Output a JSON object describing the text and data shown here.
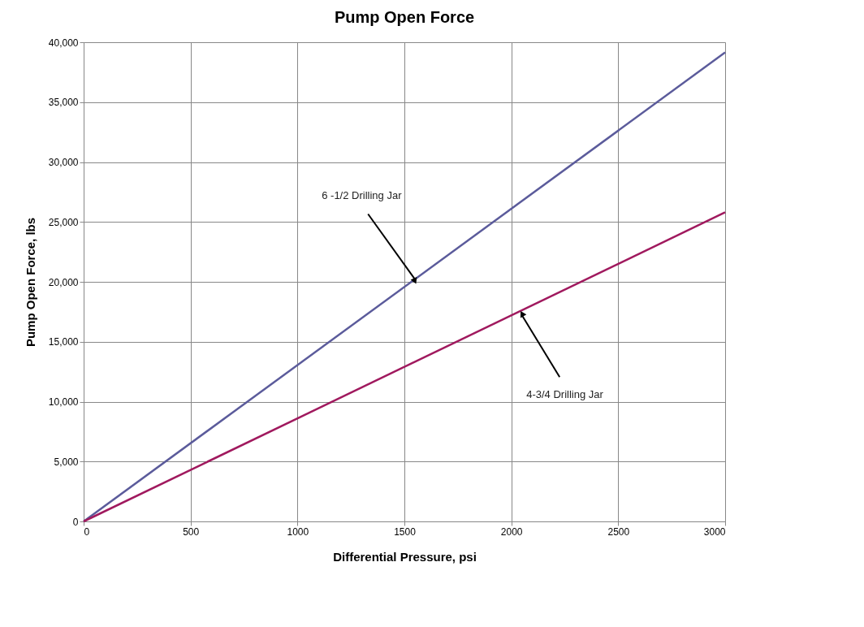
{
  "chart_data": {
    "type": "line",
    "title": "Pump Open Force",
    "xlabel": "Differential Pressure, psi",
    "ylabel": "Pump Open Force, lbs",
    "x": [
      0,
      3000
    ],
    "series": [
      {
        "color": "#5b5b9b",
        "values": [
          0,
          39150
        ]
      },
      {
        "color": "#a0195e",
        "values": [
          0,
          25800
        ]
      }
    ],
    "xlim": [
      0,
      3000
    ],
    "xticks": [
      0,
      500,
      1000,
      1500,
      2000,
      2500,
      3000
    ],
    "ylim": [
      0,
      40000
    ],
    "yticks": [
      {
        "value": 0,
        "label": "0"
      },
      {
        "value": 5000,
        "label": "5,000"
      },
      {
        "value": 10000,
        "label": "10,000"
      },
      {
        "value": 15000,
        "label": "15,000"
      },
      {
        "value": 20000,
        "label": "20,000"
      },
      {
        "value": 25000,
        "label": "25,000"
      },
      {
        "value": 30000,
        "label": "30,000"
      },
      {
        "value": 35000,
        "label": "35,000"
      },
      {
        "value": 40000,
        "label": "40,000"
      }
    ],
    "grid": true,
    "legend": false,
    "marker": "none",
    "line_style": "solid",
    "annotations": [
      {
        "text": "6 -1/2 Drilling Jar",
        "x": 1550,
        "y": 20200
      },
      {
        "text": "4-3/4 Drilling Jar",
        "x": 2050,
        "y": 17200
      }
    ]
  }
}
